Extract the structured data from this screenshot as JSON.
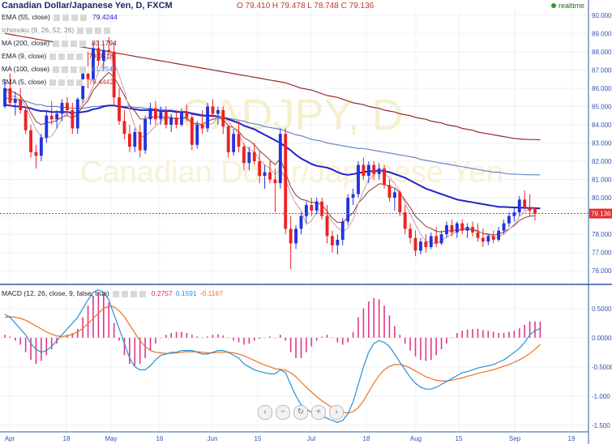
{
  "header": {
    "title": "Canadian Dollar/Japanese Yen, D, FXCM",
    "ohlc": "O 79.410  H 79.478  L 78.748  C 79.136",
    "realtime": "realtime"
  },
  "indicators": [
    {
      "label": "EMA (55, close)",
      "value": "79.4244",
      "color": "#2222cc"
    },
    {
      "label": "Ichimoku (9, 26, 52, 26)",
      "value": "",
      "color": "#999999"
    },
    {
      "label": "MA (200, close)",
      "value": "83.1794",
      "color": "#8b1a1a"
    },
    {
      "label": "EMA (9, close)",
      "value": "79.0518",
      "color": "#8b1a1a"
    },
    {
      "label": "MA (100, close)",
      "value": "81.2546",
      "color": "#6080c0"
    },
    {
      "label": "SMA (5, close)",
      "value": "79.4442",
      "color": "#c04040"
    }
  ],
  "macd_legend": {
    "label": "MACD (12, 26, close, 9, false, true)",
    "hist": "0.2757",
    "macd": "0.1591",
    "signal": "-0.1167",
    "hist_color": "#dd2277",
    "macd_color": "#2a90d8",
    "signal_color": "#f07020"
  },
  "watermark": {
    "symbol": "CADJPY, D",
    "name": "Canadian Dollar/Japanese Yen"
  },
  "nav_icons": [
    "chevron-left-icon",
    "minus-icon",
    "reset-icon",
    "plus-icon",
    "chevron-right-icon"
  ],
  "chart_data": {
    "type": "candlestick",
    "price_axis": {
      "ticks": [
        "90.000",
        "89.000",
        "88.000",
        "87.000",
        "86.000",
        "85.000",
        "84.000",
        "83.000",
        "82.000",
        "81.000",
        "80.000",
        "79.000",
        "78.000",
        "77.000",
        "76.000"
      ],
      "range": [
        75.3,
        90.3
      ]
    },
    "last_price": "79.136",
    "macd_axis": {
      "ticks": [
        "0.5000",
        "0.0000",
        "-0.5000",
        "-1.000",
        "-1.500"
      ],
      "range": [
        -1.6,
        0.9
      ]
    },
    "x_labels": [
      "Apr",
      "18",
      "May",
      "16",
      "Jun",
      "15",
      "Jul",
      "18",
      "Aug",
      "15",
      "Sep",
      "19"
    ],
    "candles": [
      {
        "o": 85.0,
        "h": 86.5,
        "l": 84.9,
        "c": 86.0
      },
      {
        "o": 86.0,
        "h": 86.8,
        "l": 85.0,
        "c": 85.2
      },
      {
        "o": 85.2,
        "h": 85.8,
        "l": 84.5,
        "c": 85.4
      },
      {
        "o": 85.4,
        "h": 86.0,
        "l": 84.6,
        "c": 84.8
      },
      {
        "o": 84.8,
        "h": 85.0,
        "l": 83.5,
        "c": 83.7
      },
      {
        "o": 83.7,
        "h": 84.0,
        "l": 82.2,
        "c": 82.5
      },
      {
        "o": 82.5,
        "h": 82.9,
        "l": 81.6,
        "c": 82.3
      },
      {
        "o": 82.3,
        "h": 83.5,
        "l": 82.0,
        "c": 83.3
      },
      {
        "o": 83.3,
        "h": 84.8,
        "l": 83.0,
        "c": 84.5
      },
      {
        "o": 84.5,
        "h": 85.3,
        "l": 84.0,
        "c": 84.3
      },
      {
        "o": 84.3,
        "h": 84.8,
        "l": 83.8,
        "c": 84.6
      },
      {
        "o": 84.6,
        "h": 85.4,
        "l": 84.2,
        "c": 85.2
      },
      {
        "o": 85.2,
        "h": 85.5,
        "l": 84.5,
        "c": 84.8
      },
      {
        "o": 84.8,
        "h": 85.2,
        "l": 83.5,
        "c": 83.8
      },
      {
        "o": 83.8,
        "h": 85.5,
        "l": 83.5,
        "c": 85.4
      },
      {
        "o": 85.4,
        "h": 87.0,
        "l": 85.2,
        "c": 86.8
      },
      {
        "o": 86.8,
        "h": 88.0,
        "l": 86.0,
        "c": 86.5
      },
      {
        "o": 86.5,
        "h": 88.5,
        "l": 86.3,
        "c": 88.2
      },
      {
        "o": 88.2,
        "h": 88.6,
        "l": 87.2,
        "c": 87.5
      },
      {
        "o": 87.5,
        "h": 88.4,
        "l": 87.0,
        "c": 88.1
      },
      {
        "o": 88.1,
        "h": 88.8,
        "l": 87.8,
        "c": 88.0
      },
      {
        "o": 88.0,
        "h": 88.5,
        "l": 85.0,
        "c": 85.5
      },
      {
        "o": 85.5,
        "h": 86.0,
        "l": 84.0,
        "c": 84.2
      },
      {
        "o": 84.2,
        "h": 84.8,
        "l": 83.2,
        "c": 83.5
      },
      {
        "o": 83.5,
        "h": 84.0,
        "l": 82.5,
        "c": 82.8
      },
      {
        "o": 82.8,
        "h": 83.8,
        "l": 82.5,
        "c": 83.6
      },
      {
        "o": 83.6,
        "h": 84.0,
        "l": 82.2,
        "c": 82.6
      },
      {
        "o": 82.6,
        "h": 84.5,
        "l": 82.4,
        "c": 84.3
      },
      {
        "o": 84.3,
        "h": 85.2,
        "l": 84.0,
        "c": 84.9
      },
      {
        "o": 84.9,
        "h": 85.3,
        "l": 84.0,
        "c": 84.3
      },
      {
        "o": 84.3,
        "h": 85.0,
        "l": 84.0,
        "c": 84.7
      },
      {
        "o": 84.7,
        "h": 85.0,
        "l": 83.8,
        "c": 84.0
      },
      {
        "o": 84.0,
        "h": 84.6,
        "l": 83.6,
        "c": 84.4
      },
      {
        "o": 84.4,
        "h": 84.8,
        "l": 83.8,
        "c": 84.0
      },
      {
        "o": 84.0,
        "h": 84.9,
        "l": 83.9,
        "c": 84.7
      },
      {
        "o": 84.7,
        "h": 85.1,
        "l": 84.2,
        "c": 84.4
      },
      {
        "o": 84.4,
        "h": 84.6,
        "l": 82.6,
        "c": 82.9
      },
      {
        "o": 82.9,
        "h": 84.2,
        "l": 82.7,
        "c": 84.0
      },
      {
        "o": 84.0,
        "h": 84.8,
        "l": 83.5,
        "c": 83.8
      },
      {
        "o": 83.8,
        "h": 85.2,
        "l": 83.6,
        "c": 85.0
      },
      {
        "o": 85.0,
        "h": 85.4,
        "l": 84.4,
        "c": 84.6
      },
      {
        "o": 84.6,
        "h": 85.0,
        "l": 84.0,
        "c": 84.8
      },
      {
        "o": 84.8,
        "h": 85.0,
        "l": 83.5,
        "c": 83.9
      },
      {
        "o": 83.9,
        "h": 84.0,
        "l": 82.2,
        "c": 82.5
      },
      {
        "o": 82.5,
        "h": 83.8,
        "l": 82.3,
        "c": 83.5
      },
      {
        "o": 83.5,
        "h": 84.2,
        "l": 82.5,
        "c": 82.8
      },
      {
        "o": 82.8,
        "h": 83.0,
        "l": 81.5,
        "c": 81.9
      },
      {
        "o": 81.9,
        "h": 82.8,
        "l": 81.5,
        "c": 82.5
      },
      {
        "o": 82.5,
        "h": 83.0,
        "l": 81.8,
        "c": 82.0
      },
      {
        "o": 82.0,
        "h": 82.6,
        "l": 80.8,
        "c": 81.2
      },
      {
        "o": 81.2,
        "h": 81.8,
        "l": 80.5,
        "c": 81.4
      },
      {
        "o": 81.4,
        "h": 82.0,
        "l": 80.8,
        "c": 81.0
      },
      {
        "o": 81.0,
        "h": 81.6,
        "l": 79.2,
        "c": 80.8
      },
      {
        "o": 80.8,
        "h": 83.8,
        "l": 80.5,
        "c": 83.5
      },
      {
        "o": 83.5,
        "h": 83.8,
        "l": 78.0,
        "c": 78.3
      },
      {
        "o": 78.3,
        "h": 79.0,
        "l": 76.1,
        "c": 77.5
      },
      {
        "o": 77.5,
        "h": 78.5,
        "l": 77.2,
        "c": 78.3
      },
      {
        "o": 78.3,
        "h": 79.2,
        "l": 78.0,
        "c": 79.0
      },
      {
        "o": 79.0,
        "h": 79.8,
        "l": 78.6,
        "c": 79.6
      },
      {
        "o": 79.6,
        "h": 80.0,
        "l": 79.0,
        "c": 79.3
      },
      {
        "o": 79.3,
        "h": 80.0,
        "l": 79.1,
        "c": 79.8
      },
      {
        "o": 79.8,
        "h": 80.0,
        "l": 78.8,
        "c": 79.0
      },
      {
        "o": 79.0,
        "h": 79.6,
        "l": 77.5,
        "c": 77.9
      },
      {
        "o": 77.9,
        "h": 78.2,
        "l": 77.0,
        "c": 77.4
      },
      {
        "o": 77.4,
        "h": 78.0,
        "l": 76.9,
        "c": 77.7
      },
      {
        "o": 77.7,
        "h": 78.9,
        "l": 77.4,
        "c": 78.7
      },
      {
        "o": 78.7,
        "h": 80.2,
        "l": 78.5,
        "c": 80.0
      },
      {
        "o": 80.0,
        "h": 80.5,
        "l": 79.6,
        "c": 80.2
      },
      {
        "o": 80.2,
        "h": 82.0,
        "l": 80.0,
        "c": 81.8
      },
      {
        "o": 81.8,
        "h": 82.2,
        "l": 81.0,
        "c": 81.2
      },
      {
        "o": 81.2,
        "h": 82.0,
        "l": 80.8,
        "c": 81.8
      },
      {
        "o": 81.8,
        "h": 82.0,
        "l": 81.0,
        "c": 81.3
      },
      {
        "o": 81.3,
        "h": 81.9,
        "l": 81.0,
        "c": 81.6
      },
      {
        "o": 81.6,
        "h": 81.8,
        "l": 80.5,
        "c": 80.7
      },
      {
        "o": 80.7,
        "h": 81.0,
        "l": 79.8,
        "c": 80.0
      },
      {
        "o": 80.0,
        "h": 80.5,
        "l": 79.3,
        "c": 80.3
      },
      {
        "o": 80.3,
        "h": 80.4,
        "l": 79.0,
        "c": 79.2
      },
      {
        "o": 79.2,
        "h": 79.6,
        "l": 78.0,
        "c": 78.3
      },
      {
        "o": 78.3,
        "h": 78.6,
        "l": 77.5,
        "c": 77.8
      },
      {
        "o": 77.8,
        "h": 78.2,
        "l": 76.8,
        "c": 77.1
      },
      {
        "o": 77.1,
        "h": 77.8,
        "l": 76.9,
        "c": 77.6
      },
      {
        "o": 77.6,
        "h": 78.0,
        "l": 77.0,
        "c": 77.3
      },
      {
        "o": 77.3,
        "h": 78.1,
        "l": 77.2,
        "c": 77.9
      },
      {
        "o": 77.9,
        "h": 78.4,
        "l": 77.3,
        "c": 77.5
      },
      {
        "o": 77.5,
        "h": 78.2,
        "l": 77.4,
        "c": 78.0
      },
      {
        "o": 78.0,
        "h": 78.7,
        "l": 77.8,
        "c": 78.5
      },
      {
        "o": 78.5,
        "h": 78.8,
        "l": 77.9,
        "c": 78.1
      },
      {
        "o": 78.1,
        "h": 78.7,
        "l": 77.8,
        "c": 78.6
      },
      {
        "o": 78.6,
        "h": 78.8,
        "l": 78.0,
        "c": 78.2
      },
      {
        "o": 78.2,
        "h": 78.6,
        "l": 77.8,
        "c": 78.4
      },
      {
        "o": 78.4,
        "h": 78.7,
        "l": 77.9,
        "c": 78.1
      },
      {
        "o": 78.1,
        "h": 78.6,
        "l": 77.6,
        "c": 77.8
      },
      {
        "o": 77.8,
        "h": 78.3,
        "l": 77.3,
        "c": 77.6
      },
      {
        "o": 77.6,
        "h": 78.0,
        "l": 77.4,
        "c": 77.9
      },
      {
        "o": 77.9,
        "h": 78.2,
        "l": 77.5,
        "c": 77.7
      },
      {
        "o": 77.7,
        "h": 78.4,
        "l": 77.6,
        "c": 78.2
      },
      {
        "o": 78.2,
        "h": 78.8,
        "l": 78.0,
        "c": 78.6
      },
      {
        "o": 78.6,
        "h": 79.2,
        "l": 78.4,
        "c": 79.0
      },
      {
        "o": 79.0,
        "h": 79.5,
        "l": 78.7,
        "c": 79.2
      },
      {
        "o": 79.2,
        "h": 80.1,
        "l": 79.0,
        "c": 79.9
      },
      {
        "o": 79.9,
        "h": 80.4,
        "l": 79.3,
        "c": 79.5
      },
      {
        "o": 79.5,
        "h": 80.2,
        "l": 79.0,
        "c": 79.3
      },
      {
        "o": 79.41,
        "h": 79.478,
        "l": 78.748,
        "c": 79.136
      }
    ],
    "ema55": [
      85.1,
      85.05,
      85.0,
      85.0,
      84.95,
      84.9,
      84.8,
      84.75,
      84.75,
      84.7,
      84.7,
      84.7,
      84.7,
      84.65,
      84.65,
      84.7,
      84.75,
      84.85,
      84.9,
      85.0,
      85.05,
      85.05,
      85.0,
      84.95,
      84.9,
      84.85,
      84.8,
      84.8,
      84.8,
      84.8,
      84.75,
      84.75,
      84.75,
      84.7,
      84.7,
      84.7,
      84.6,
      84.55,
      84.5,
      84.5,
      84.5,
      84.45,
      84.4,
      84.3,
      84.2,
      84.1,
      83.95,
      83.85,
      83.75,
      83.6,
      83.45,
      83.3,
      83.15,
      83.0,
      82.8,
      82.6,
      82.35,
      82.15,
      82.0,
      81.85,
      81.75,
      81.7,
      81.65,
      81.55,
      81.4,
      81.3,
      81.25,
      81.3,
      81.35,
      81.4,
      81.45,
      81.45,
      81.5,
      81.45,
      81.4,
      81.3,
      81.2,
      81.1,
      80.95,
      80.8,
      80.65,
      80.5,
      80.4,
      80.3,
      80.2,
      80.1,
      80.0,
      79.9,
      79.85,
      79.8,
      79.75,
      79.7,
      79.65,
      79.6,
      79.55,
      79.5,
      79.5,
      79.48,
      79.47,
      79.46,
      79.45,
      79.44,
      79.43,
      79.42
    ],
    "ma100": [
      85.5,
      85.4,
      85.4,
      85.3,
      85.3,
      85.2,
      85.1,
      85.1,
      85.0,
      85.0,
      85.0,
      84.95,
      84.95,
      84.9,
      84.9,
      84.9,
      84.95,
      85.0,
      85.0,
      85.05,
      85.05,
      85.05,
      85.0,
      85.0,
      85.0,
      84.95,
      84.95,
      84.9,
      84.9,
      84.85,
      84.85,
      84.8,
      84.8,
      84.75,
      84.7,
      84.7,
      84.65,
      84.6,
      84.55,
      84.5,
      84.45,
      84.45,
      84.4,
      84.35,
      84.3,
      84.25,
      84.2,
      84.1,
      84.05,
      84.0,
      83.9,
      83.85,
      83.8,
      83.75,
      83.65,
      83.55,
      83.45,
      83.4,
      83.3,
      83.2,
      83.15,
      83.1,
      83.0,
      82.95,
      82.9,
      82.85,
      82.8,
      82.75,
      82.7,
      82.7,
      82.65,
      82.6,
      82.55,
      82.5,
      82.45,
      82.4,
      82.35,
      82.3,
      82.25,
      82.2,
      82.1,
      82.05,
      82.0,
      81.95,
      81.9,
      81.85,
      81.8,
      81.75,
      81.7,
      81.65,
      81.6,
      81.55,
      81.5,
      81.45,
      81.4,
      81.4,
      81.35,
      81.3,
      81.3,
      81.28,
      81.27,
      81.26,
      81.255,
      81.2546
    ],
    "ma200": [
      89.0,
      88.95,
      88.9,
      88.85,
      88.8,
      88.75,
      88.7,
      88.65,
      88.6,
      88.55,
      88.5,
      88.45,
      88.4,
      88.35,
      88.3,
      88.25,
      88.2,
      88.15,
      88.1,
      88.05,
      88.0,
      87.95,
      87.9,
      87.85,
      87.8,
      87.75,
      87.7,
      87.65,
      87.6,
      87.55,
      87.5,
      87.45,
      87.4,
      87.35,
      87.3,
      87.25,
      87.2,
      87.15,
      87.1,
      87.05,
      87.0,
      86.95,
      86.9,
      86.85,
      86.8,
      86.75,
      86.7,
      86.65,
      86.6,
      86.55,
      86.5,
      86.45,
      86.4,
      86.35,
      86.3,
      86.2,
      86.1,
      86.0,
      85.95,
      85.9,
      85.8,
      85.7,
      85.6,
      85.55,
      85.5,
      85.4,
      85.3,
      85.2,
      85.15,
      85.1,
      85.0,
      84.95,
      84.9,
      84.8,
      84.75,
      84.7,
      84.6,
      84.55,
      84.5,
      84.4,
      84.35,
      84.3,
      84.2,
      84.15,
      84.1,
      84.0,
      83.95,
      83.9,
      83.8,
      83.75,
      83.7,
      83.6,
      83.55,
      83.5,
      83.45,
      83.4,
      83.35,
      83.3,
      83.25,
      83.22,
      83.2,
      83.19,
      83.185,
      83.1794
    ],
    "macd_hist": [
      0.05,
      0.02,
      -0.05,
      -0.12,
      -0.25,
      -0.38,
      -0.45,
      -0.4,
      -0.3,
      -0.2,
      -0.1,
      0.0,
      0.05,
      0.08,
      0.15,
      0.35,
      0.55,
      0.72,
      0.78,
      0.75,
      0.6,
      0.25,
      -0.05,
      -0.3,
      -0.45,
      -0.48,
      -0.45,
      -0.35,
      -0.22,
      -0.1,
      0.0,
      0.05,
      0.08,
      0.1,
      0.1,
      0.08,
      0.05,
      0.02,
      0.0,
      0.02,
      0.05,
      0.06,
      0.04,
      0.0,
      -0.05,
      -0.08,
      -0.12,
      -0.1,
      -0.05,
      -0.02,
      0.0,
      0.02,
      0.0,
      0.05,
      -0.05,
      -0.25,
      -0.35,
      -0.35,
      -0.25,
      -0.15,
      -0.05,
      0.02,
      0.05,
      0.0,
      -0.08,
      -0.12,
      -0.08,
      0.1,
      0.35,
      0.5,
      0.62,
      0.68,
      0.66,
      0.55,
      0.38,
      0.2,
      0.05,
      -0.1,
      -0.22,
      -0.32,
      -0.38,
      -0.4,
      -0.38,
      -0.3,
      -0.2,
      -0.1,
      0.0,
      0.08,
      0.12,
      0.14,
      0.15,
      0.15,
      0.13,
      0.12,
      0.1,
      0.08,
      0.08,
      0.1,
      0.12,
      0.16,
      0.22,
      0.28,
      0.28,
      0.2757
    ],
    "macd_line": [
      0.4,
      0.35,
      0.25,
      0.15,
      0.05,
      -0.1,
      -0.2,
      -0.25,
      -0.22,
      -0.15,
      -0.05,
      0.05,
      0.15,
      0.25,
      0.35,
      0.5,
      0.65,
      0.78,
      0.82,
      0.78,
      0.65,
      0.4,
      0.15,
      -0.1,
      -0.35,
      -0.5,
      -0.55,
      -0.55,
      -0.48,
      -0.38,
      -0.3,
      -0.28,
      -0.25,
      -0.25,
      -0.22,
      -0.22,
      -0.22,
      -0.25,
      -0.28,
      -0.28,
      -0.25,
      -0.22,
      -0.22,
      -0.25,
      -0.3,
      -0.35,
      -0.45,
      -0.5,
      -0.55,
      -0.58,
      -0.6,
      -0.62,
      -0.62,
      -0.55,
      -0.6,
      -0.8,
      -1.0,
      -1.15,
      -1.22,
      -1.28,
      -1.32,
      -1.35,
      -1.38,
      -1.42,
      -1.45,
      -1.42,
      -1.3,
      -1.1,
      -0.8,
      -0.5,
      -0.25,
      -0.1,
      -0.05,
      -0.08,
      -0.15,
      -0.28,
      -0.42,
      -0.55,
      -0.68,
      -0.78,
      -0.85,
      -0.88,
      -0.88,
      -0.85,
      -0.8,
      -0.75,
      -0.7,
      -0.65,
      -0.6,
      -0.58,
      -0.55,
      -0.52,
      -0.5,
      -0.48,
      -0.46,
      -0.42,
      -0.38,
      -0.32,
      -0.25,
      -0.18,
      -0.08,
      0.05,
      0.12,
      0.1591
    ],
    "signal_line": [
      0.35,
      0.36,
      0.35,
      0.33,
      0.3,
      0.25,
      0.2,
      0.15,
      0.1,
      0.06,
      0.03,
      0.02,
      0.03,
      0.06,
      0.1,
      0.16,
      0.24,
      0.33,
      0.42,
      0.5,
      0.54,
      0.53,
      0.46,
      0.36,
      0.22,
      0.08,
      -0.05,
      -0.15,
      -0.22,
      -0.25,
      -0.26,
      -0.27,
      -0.27,
      -0.26,
      -0.25,
      -0.24,
      -0.24,
      -0.24,
      -0.25,
      -0.26,
      -0.26,
      -0.25,
      -0.25,
      -0.25,
      -0.26,
      -0.28,
      -0.31,
      -0.35,
      -0.39,
      -0.43,
      -0.47,
      -0.5,
      -0.53,
      -0.54,
      -0.56,
      -0.6,
      -0.67,
      -0.76,
      -0.85,
      -0.93,
      -1.01,
      -1.08,
      -1.14,
      -1.2,
      -1.25,
      -1.28,
      -1.29,
      -1.27,
      -1.2,
      -1.08,
      -0.93,
      -0.78,
      -0.65,
      -0.55,
      -0.49,
      -0.46,
      -0.46,
      -0.48,
      -0.52,
      -0.57,
      -0.62,
      -0.67,
      -0.7,
      -0.73,
      -0.74,
      -0.74,
      -0.73,
      -0.71,
      -0.69,
      -0.66,
      -0.64,
      -0.61,
      -0.59,
      -0.57,
      -0.55,
      -0.52,
      -0.49,
      -0.46,
      -0.42,
      -0.38,
      -0.33,
      -0.27,
      -0.2,
      -0.1167
    ]
  }
}
